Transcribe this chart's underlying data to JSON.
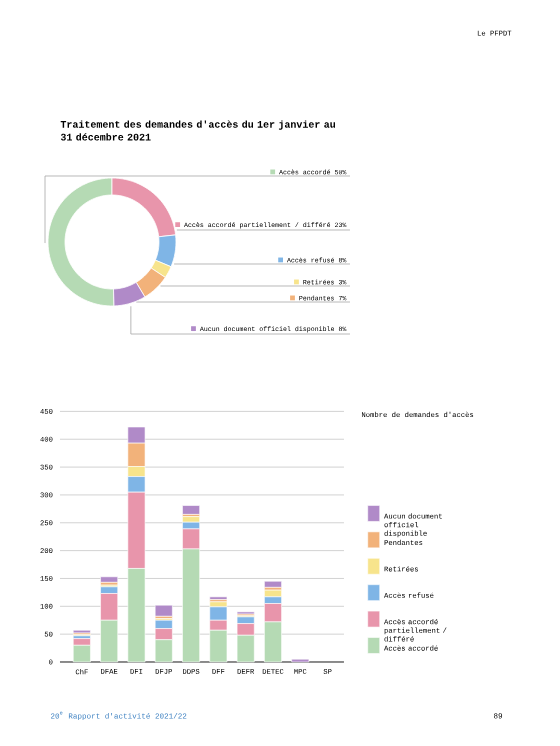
{
  "chart_data": [
    {
      "type": "donut",
      "title": "Traitement des demandes d'accès du 1er janvier au 31 décembre 2021",
      "categories": [
        "Accès accordé",
        "Accès accordé partiellement / différé",
        "Accès refusé",
        "Retirées",
        "Pendantes",
        "Aucun document officiel disponible"
      ],
      "values": [
        50,
        23,
        8,
        3,
        7,
        8
      ],
      "value_labels": [
        "50%",
        "23%",
        "8%",
        "3%",
        "7%",
        "8%"
      ],
      "colors": [
        "#b5dab4",
        "#e895ab",
        "#7fb5e6",
        "#f7e48c",
        "#f2b27a",
        "#b08ac8"
      ],
      "legend": "right",
      "annotations": [
        "Le PFPDT"
      ]
    },
    {
      "type": "bar",
      "stacked": true,
      "legend": "right",
      "grid": "y",
      "legend_title": "Nombre de demandes d'accès",
      "categories": [
        "ChF",
        "DFAE",
        "DFI",
        "DFJP",
        "DDPS",
        "DFF",
        "DEFR",
        "DETEC",
        "MPC",
        "SP"
      ],
      "ylim": [
        0,
        450
      ],
      "yticks": [
        0,
        50,
        100,
        150,
        200,
        250,
        300,
        350,
        400,
        450
      ],
      "series": [
        {
          "name": "Accès accordé",
          "color": "#b5dab4",
          "values": [
            30,
            75,
            168,
            40,
            203,
            57,
            48,
            72,
            0,
            0
          ]
        },
        {
          "name": "Accès accordé partiellement / différé",
          "color": "#e895ab",
          "values": [
            12,
            48,
            137,
            20,
            36,
            18,
            21,
            33,
            0,
            0
          ]
        },
        {
          "name": "Accès refusé",
          "color": "#7fb5e6",
          "values": [
            5,
            12,
            28,
            15,
            12,
            24,
            12,
            12,
            0,
            0
          ]
        },
        {
          "name": "Retirées",
          "color": "#f7e48c",
          "values": [
            2,
            3,
            18,
            3,
            10,
            9,
            2,
            12,
            0,
            0
          ]
        },
        {
          "name": "Pendantes",
          "color": "#f2b27a",
          "values": [
            3,
            5,
            42,
            4,
            4,
            4,
            3,
            5,
            0,
            0
          ]
        },
        {
          "name": "Aucun document officiel disponible",
          "color": "#b08ac8",
          "values": [
            5,
            10,
            29,
            20,
            16,
            5,
            4,
            11,
            5,
            0
          ]
        }
      ],
      "annotations": [
        "20$^{e}$ Rapport d'activité 2021/22",
        "89"
      ]
    }
  ]
}
